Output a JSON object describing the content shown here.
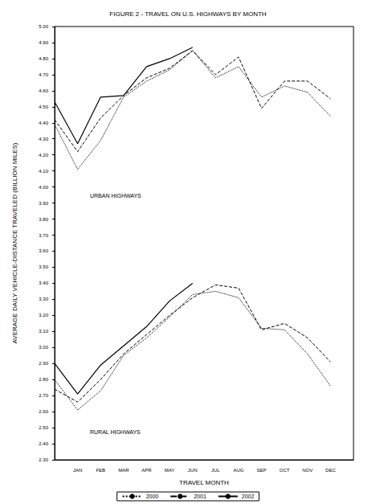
{
  "chart_data": {
    "type": "line",
    "title": "FIGURE 2 - TRAVEL ON U.S. HIGHWAYS BY MONTH",
    "x_label": "TRAVEL MONTH",
    "y_label": "AVERAGE DAILY VEHICLE-DISTANCE TRAVELED (BILLION MILES)",
    "annotations": [
      "URBAN HIGHWAYS",
      "RURAL HIGHWAYS"
    ],
    "categories": [
      null,
      "JAN",
      "FEB",
      "MAR",
      "APR",
      "MAY",
      "JUN",
      "JUL",
      "AUG",
      "SEP",
      "OCT",
      "NOV",
      "DEC",
      null
    ],
    "series": [
      {
        "name": "2000",
        "color": "#000000",
        "line_style": "dotted",
        "values": [
          4.39,
          4.11,
          4.29,
          4.56,
          4.66,
          4.73,
          4.85,
          4.68,
          4.75,
          4.56,
          4.63,
          4.59,
          4.44,
          null
        ]
      },
      {
        "name": "2001",
        "color": "#000000",
        "line_style": "dashed",
        "values": [
          4.42,
          4.22,
          4.43,
          4.57,
          4.68,
          4.74,
          4.85,
          4.7,
          4.81,
          4.49,
          4.66,
          4.66,
          4.55,
          null
        ]
      },
      {
        "name": "2002",
        "color": "#000000",
        "line_style": "solid",
        "values": [
          4.53,
          4.27,
          4.56,
          4.57,
          4.75,
          4.8,
          4.87,
          null,
          null,
          null,
          null,
          null,
          null,
          null
        ]
      },
      {
        "name": "2000",
        "color": "#000000",
        "line_style": "dotted",
        "values": [
          2.8,
          2.61,
          2.73,
          2.95,
          3.06,
          3.19,
          3.33,
          3.35,
          3.31,
          3.12,
          3.11,
          2.96,
          2.76,
          null
        ]
      },
      {
        "name": "2001",
        "color": "#000000",
        "line_style": "dashed",
        "values": [
          2.74,
          2.66,
          2.8,
          2.96,
          3.08,
          3.2,
          3.31,
          3.39,
          3.37,
          3.11,
          3.15,
          3.06,
          2.91,
          null
        ]
      },
      {
        "name": "2002",
        "color": "#000000",
        "line_style": "solid",
        "values": [
          2.9,
          2.71,
          2.89,
          3.01,
          3.13,
          3.29,
          3.4,
          null,
          null,
          null,
          null,
          null,
          null,
          null
        ]
      }
    ],
    "ylim": [
      2.3,
      5.0
    ],
    "yticks": [
      {
        "value": 2.3,
        "label": "2.30"
      },
      {
        "value": 2.4,
        "label": "2.40"
      },
      {
        "value": 2.5,
        "label": "2.50"
      },
      {
        "value": 2.6,
        "label": "2.60"
      },
      {
        "value": 2.7,
        "label": "2.70"
      },
      {
        "value": 2.8,
        "label": "2.80"
      },
      {
        "value": 2.9,
        "label": "2.90"
      },
      {
        "value": 3.0,
        "label": "3.00"
      },
      {
        "value": 3.1,
        "label": "3.10"
      },
      {
        "value": 3.2,
        "label": "3.20"
      },
      {
        "value": 3.3,
        "label": "3.30"
      },
      {
        "value": 3.4,
        "label": "3.40"
      },
      {
        "value": 3.5,
        "label": "3.50"
      },
      {
        "value": 3.6,
        "label": "3.60"
      },
      {
        "value": 3.7,
        "label": "3.70"
      },
      {
        "value": 3.8,
        "label": "3.80"
      },
      {
        "value": 3.9,
        "label": "3.90"
      },
      {
        "value": 4.0,
        "label": "4.00"
      },
      {
        "value": 4.1,
        "label": "4.10"
      },
      {
        "value": 4.2,
        "label": "4.20"
      },
      {
        "value": 4.3,
        "label": "4.30"
      },
      {
        "value": 4.4,
        "label": "4.40"
      },
      {
        "value": 4.5,
        "label": "4.50"
      },
      {
        "value": 4.6,
        "label": "4.60"
      },
      {
        "value": 4.7,
        "label": "4.70"
      },
      {
        "value": 4.8,
        "label": "4.80"
      },
      {
        "value": 4.9,
        "label": "4.90"
      },
      {
        "value": 5.0,
        "label": "5.00"
      }
    ],
    "grid": false,
    "legend": "bottom",
    "marker": "none"
  }
}
